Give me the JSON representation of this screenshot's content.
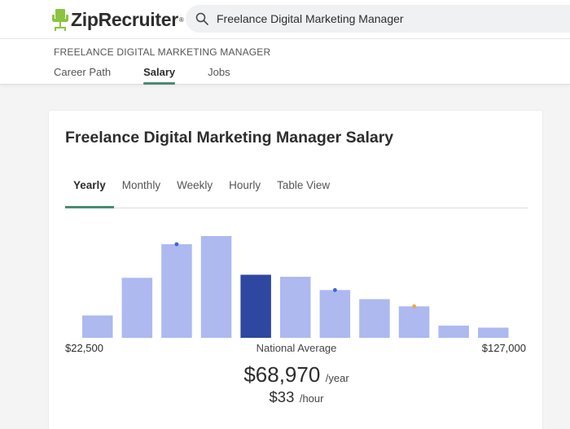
{
  "brand": {
    "name": "ZipRecruiter",
    "reg": "®",
    "logo_color": "#8bc53f"
  },
  "search": {
    "value": "Freelance Digital Marketing Manager",
    "icon": "search-icon"
  },
  "subheader": {
    "breadcrumb": "FREELANCE DIGITAL MARKETING MANAGER",
    "tabs": [
      {
        "label": "Career Path",
        "active": false
      },
      {
        "label": "Salary",
        "active": true
      },
      {
        "label": "Jobs",
        "active": false
      }
    ]
  },
  "card": {
    "title": "Freelance Digital Marketing Manager Salary",
    "period_tabs": [
      {
        "label": "Yearly",
        "active": true
      },
      {
        "label": "Monthly",
        "active": false
      },
      {
        "label": "Weekly",
        "active": false
      },
      {
        "label": "Hourly",
        "active": false
      },
      {
        "label": "Table View",
        "active": false
      }
    ],
    "range_min": "$22,500",
    "range_max": "$127,000",
    "center_label": "National Average",
    "average_yearly": "$68,970",
    "average_yearly_unit": "/year",
    "average_hourly": "$33",
    "average_hourly_unit": "/hour"
  },
  "colors": {
    "accent": "#4a8b72",
    "bar": "#adb9ef",
    "bar_highlight": "#2e47a0",
    "marker_blue": "#3b63d9",
    "marker_orange": "#f0a53a"
  },
  "chart_data": {
    "type": "bar",
    "values": [
      22,
      59,
      92,
      100,
      62,
      60,
      47,
      38,
      31,
      12,
      10
    ],
    "highlight_index": 4,
    "markers": [
      {
        "index": 2,
        "color": "blue"
      },
      {
        "index": 6,
        "color": "blue"
      },
      {
        "index": 8,
        "color": "orange"
      }
    ],
    "x_range": [
      "$22,500",
      "$127,000"
    ],
    "ylim": [
      0,
      100
    ]
  }
}
